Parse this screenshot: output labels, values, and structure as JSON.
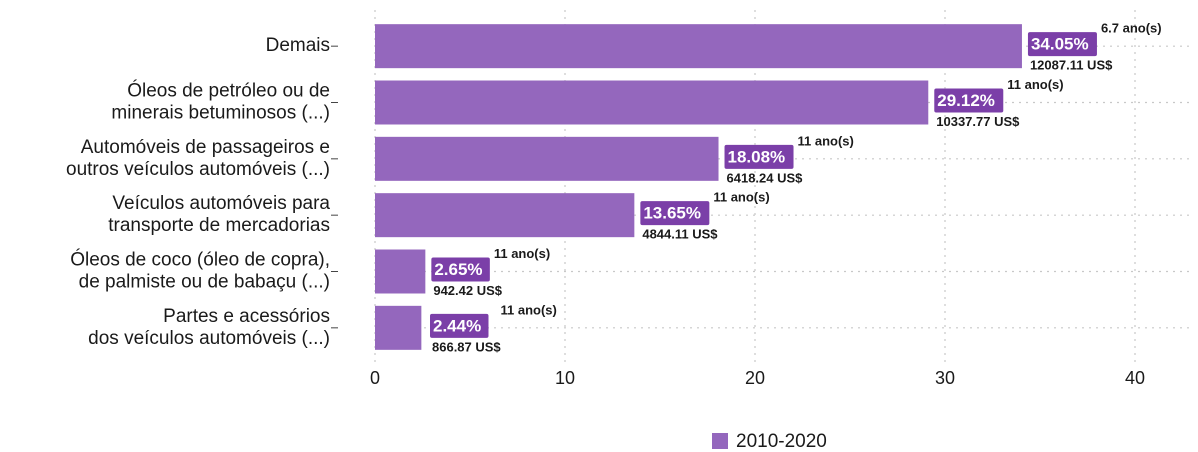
{
  "chart_data": {
    "type": "bar",
    "orientation": "horizontal",
    "categories": [
      "Demais",
      "Óleos de petróleo ou de\nminerais betuminosos (...)",
      "Automóveis de passageiros e\noutros veículos automóveis (...)",
      "Veículos automóveis para\ntransporte de mercadorias",
      "Óleos de coco (óleo de copra),\nde palmiste ou de babaçu (...)",
      "Partes e acessórios\ndos veículos automóveis (...)"
    ],
    "series": [
      {
        "name": "2010-2020",
        "color": "#9467bd",
        "label_color": "#7b3fa8",
        "values": [
          34.05,
          29.12,
          18.08,
          13.65,
          2.65,
          2.44
        ],
        "value_labels": [
          "34.05%",
          "29.12%",
          "18.08%",
          "13.65%",
          "2.65%",
          "2.44%"
        ]
      }
    ],
    "annotations": [
      {
        "years": "6.7  ano(s)",
        "usd": "12087.11 US$"
      },
      {
        "years": "11  ano(s)",
        "usd": "10337.77 US$"
      },
      {
        "years": "11  ano(s)",
        "usd": "6418.24 US$"
      },
      {
        "years": "11  ano(s)",
        "usd": "4844.11 US$"
      },
      {
        "years": "11  ano(s)",
        "usd": "942.42 US$"
      },
      {
        "years": "11  ano(s)",
        "usd": "866.87 US$"
      }
    ],
    "xlim": [
      0,
      43
    ],
    "xticks": [
      0,
      10,
      20,
      30,
      40
    ],
    "grid": true,
    "legend": "bottom"
  }
}
